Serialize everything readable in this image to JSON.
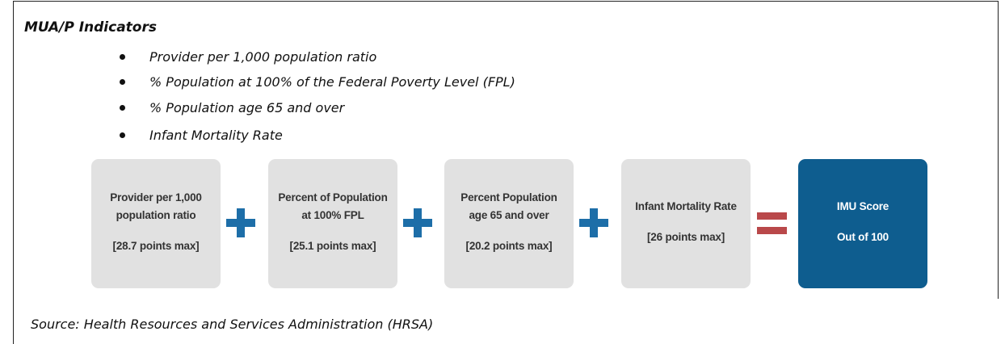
{
  "title": "MUA/P Indicators",
  "indicators": [
    "Provider per 1,000 population ratio",
    "% Population at 100% of the Federal Poverty Level (FPL)",
    "% Population age 65 and over",
    "Infant Mortality Rate"
  ],
  "boxes": [
    {
      "lines": [
        "Provider per 1,000",
        "population ratio"
      ],
      "points": "[28.7 points max]"
    },
    {
      "lines": [
        "Percent of Population",
        "at 100% FPL"
      ],
      "points": "[25.1 points max]"
    },
    {
      "lines": [
        "Percent Population",
        "age 65 and over"
      ],
      "points": "[20.2 points max]"
    },
    {
      "lines": [
        "Infant Mortality Rate"
      ],
      "points": "[26 points max]"
    }
  ],
  "result": {
    "lines": [
      "IMU Score"
    ],
    "points": "Out of 100"
  },
  "source": "Source: Health Resources and Services Administration (HRSA)"
}
